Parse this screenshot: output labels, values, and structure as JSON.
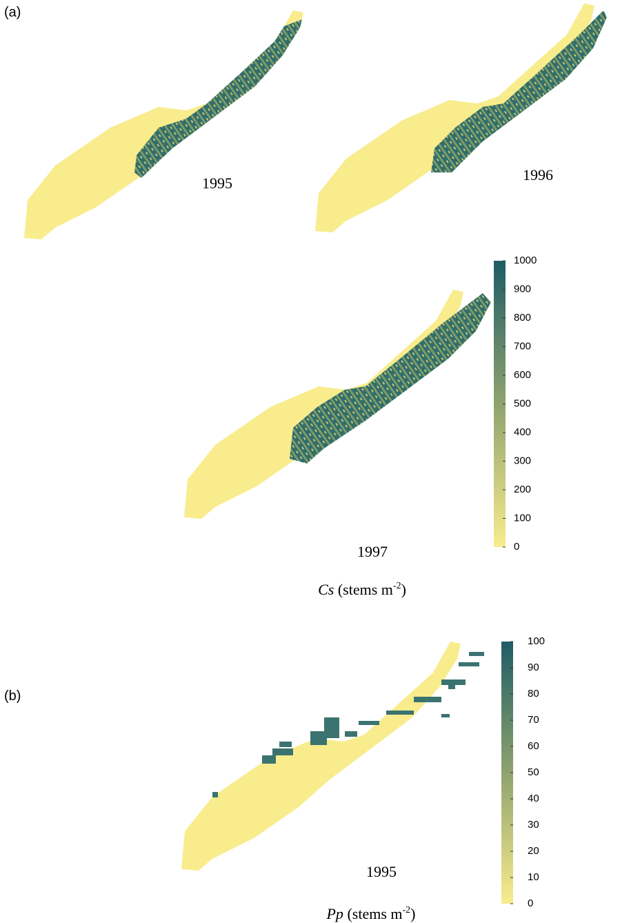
{
  "panels": [
    {
      "label": "(a)",
      "maps": [
        {
          "year": "1995"
        },
        {
          "year": "1996"
        },
        {
          "year": "1997"
        }
      ],
      "colorbar": {
        "ticks": [
          0,
          100,
          200,
          300,
          400,
          500,
          600,
          700,
          800,
          900,
          1000
        ]
      },
      "caption": {
        "var": "Cs",
        "unit": "(stems m",
        "exp": "-2",
        "close": ")"
      }
    },
    {
      "label": "(b)",
      "maps": [
        {
          "year": "1995"
        }
      ],
      "colorbar": {
        "ticks": [
          0,
          10,
          20,
          30,
          40,
          50,
          60,
          70,
          80,
          90,
          100
        ]
      },
      "caption": {
        "var": "Pp",
        "unit": "(stems m",
        "exp": "-2",
        "close": ")"
      }
    }
  ]
}
